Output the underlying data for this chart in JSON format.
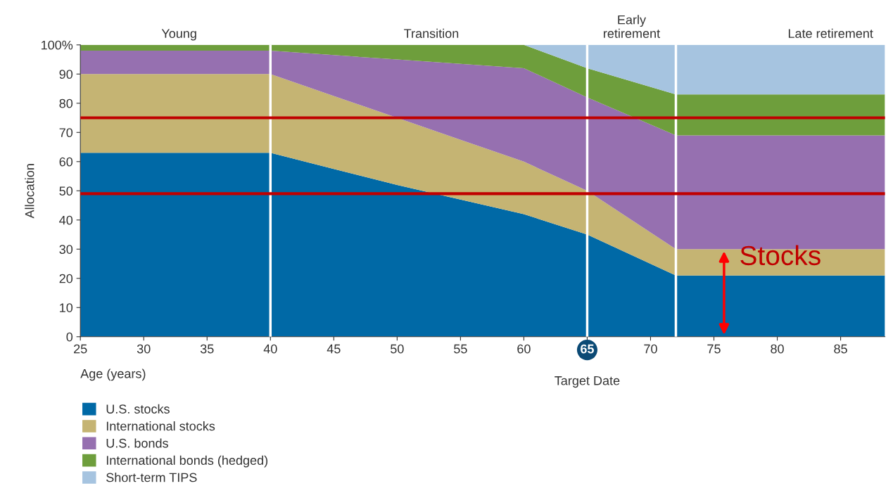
{
  "chart_data": {
    "type": "area",
    "stacked": true,
    "xlabel": "Age (years)",
    "ylabel": "Allocation",
    "x": [
      25,
      40,
      45,
      50,
      55,
      60,
      65,
      72,
      88.5
    ],
    "series": [
      {
        "name": "U.S. stocks",
        "color": "#0069a6",
        "values": [
          63,
          63,
          57.5,
          52,
          47,
          42,
          35,
          21,
          21
        ]
      },
      {
        "name": "International stocks",
        "color": "#c5b473",
        "values": [
          27,
          27,
          25,
          23,
          20.5,
          18,
          15,
          9,
          9
        ]
      },
      {
        "name": "U.S. bonds",
        "color": "#9670b0",
        "values": [
          8,
          8,
          14,
          20,
          26,
          32,
          32,
          39,
          39
        ]
      },
      {
        "name": "International bonds (hedged)",
        "color": "#6e9e3c",
        "values": [
          2,
          2,
          3.5,
          5,
          6.5,
          8,
          10,
          14,
          14
        ]
      },
      {
        "name": "Short-term TIPS",
        "color": "#a6c4e0",
        "values": [
          0,
          0,
          0,
          0,
          0,
          0,
          8,
          17,
          17
        ]
      }
    ],
    "xlim": [
      25,
      88.5
    ],
    "xticks": [
      25,
      30,
      35,
      40,
      45,
      50,
      55,
      60,
      65,
      70,
      75,
      80,
      85
    ],
    "ylim": [
      0,
      100
    ],
    "yticks": [
      0,
      10,
      20,
      30,
      40,
      50,
      60,
      70,
      80,
      90,
      {
        "value": 100,
        "label": "100%"
      }
    ],
    "ref_lines": [
      {
        "axis": "x",
        "value": 40,
        "color": "#ffffff"
      },
      {
        "axis": "x",
        "value": 65,
        "color": "#ffffff"
      },
      {
        "axis": "x",
        "value": 72,
        "color": "#ffffff"
      },
      {
        "axis": "y",
        "value": 75,
        "color": "#c00000"
      },
      {
        "axis": "y",
        "value": 49,
        "color": "#c00000"
      }
    ],
    "annotations": [
      "Young",
      "Transition",
      "Early\nretirement",
      "Late retirement",
      {
        "text": "Stocks",
        "x": 75.8,
        "y": 30
      },
      "Target Date"
    ],
    "grid": false,
    "legend": "bottom left"
  }
}
